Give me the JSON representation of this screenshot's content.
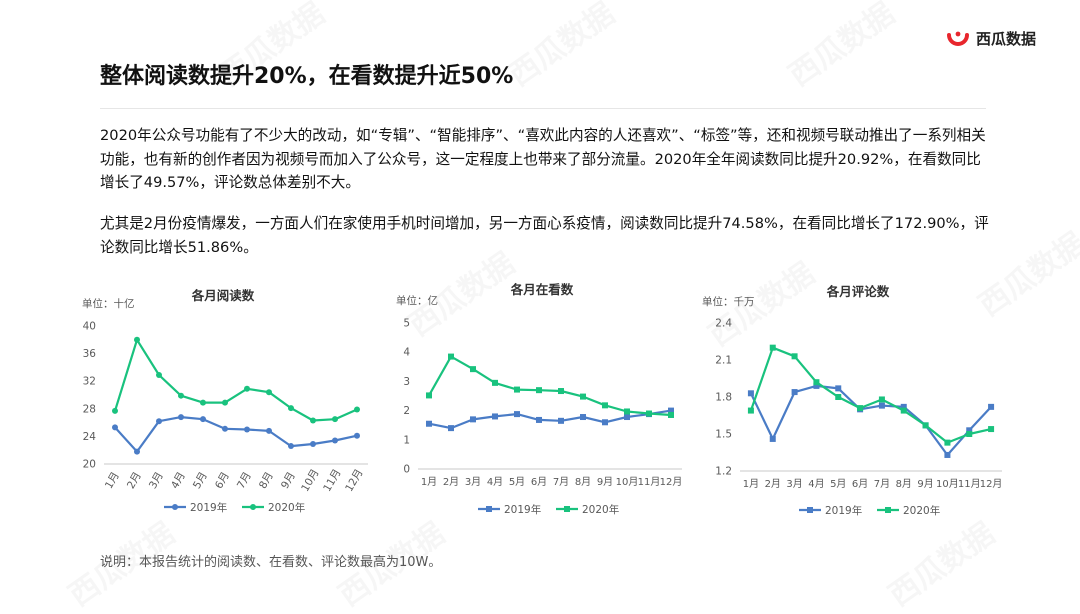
{
  "brand": {
    "name": "西瓜数据",
    "watermark": "西瓜数据"
  },
  "colors": {
    "series_2019": "#4a7cc6",
    "series_2020": "#19c27e",
    "axis": "#c8c8c8",
    "label": "#595959"
  },
  "page": {
    "title": "整体阅读数提升20%，在看数提升近50%",
    "paragraph1": "2020年公众号功能有了不少大的改动，如“专辑”、“智能排序”、“喜欢此内容的人还喜欢”、“标签”等，还和视频号联动推出了一系列相关功能，也有新的创作者因为视频号而加入了公众号，这一定程度上也带来了部分流量。2020年全年阅读数同比提升20.92%，在看数同比增长了49.57%，评论数总体差别不大。",
    "paragraph2": "尤其是2月份疫情爆发，一方面人们在家使用手机时间增加，另一方面心系疫情，阅读数同比提升74.58%，在看同比增长了172.90%，评论数同比增长51.86%。",
    "note": "说明：本报告统计的阅读数、在看数、评论数最高为10W。"
  },
  "chart_data": [
    {
      "type": "line",
      "title": "各月阅读数",
      "unit": "单位：十亿",
      "categories": [
        "1月",
        "2月",
        "3月",
        "4月",
        "5月",
        "6月",
        "7月",
        "8月",
        "9月",
        "10月",
        "11月",
        "12月"
      ],
      "ylim": [
        20,
        40
      ],
      "yticks": [
        20,
        24,
        28,
        32,
        36,
        40
      ],
      "x_label_rotated": true,
      "grid": false,
      "legend": "bottom",
      "series": [
        {
          "name": "2019年",
          "values": [
            25.3,
            21.8,
            26.2,
            26.8,
            26.5,
            25.1,
            25.0,
            24.8,
            22.6,
            22.9,
            23.4,
            24.1
          ]
        },
        {
          "name": "2020年",
          "values": [
            27.7,
            38.0,
            32.9,
            29.9,
            28.9,
            28.9,
            30.9,
            30.4,
            28.1,
            26.3,
            26.5,
            27.9
          ]
        }
      ]
    },
    {
      "type": "line",
      "title": "各月在看数",
      "unit": "单位：亿",
      "categories": [
        "1月",
        "2月",
        "3月",
        "4月",
        "5月",
        "6月",
        "7月",
        "8月",
        "9月",
        "10月",
        "11月",
        "12月"
      ],
      "ylim": [
        0,
        5
      ],
      "yticks": [
        0,
        1,
        2,
        3,
        4,
        5
      ],
      "x_label_rotated": false,
      "grid": false,
      "legend": "bottom",
      "series": [
        {
          "name": "2019年",
          "values": [
            1.55,
            1.4,
            1.7,
            1.8,
            1.88,
            1.68,
            1.65,
            1.78,
            1.6,
            1.78,
            1.88,
            2.0
          ]
        },
        {
          "name": "2020年",
          "values": [
            2.52,
            3.85,
            3.42,
            2.95,
            2.72,
            2.7,
            2.67,
            2.48,
            2.18,
            1.97,
            1.9,
            1.85
          ]
        }
      ]
    },
    {
      "type": "line",
      "title": "各月评论数",
      "unit": "单位：千万",
      "categories": [
        "1月",
        "2月",
        "3月",
        "4月",
        "5月",
        "6月",
        "7月",
        "8月",
        "9月",
        "10月",
        "11月",
        "12月"
      ],
      "ylim": [
        1.2,
        2.4
      ],
      "yticks": [
        1.2,
        1.5,
        1.8,
        2.1,
        2.4
      ],
      "x_label_rotated": false,
      "grid": false,
      "legend": "bottom",
      "series": [
        {
          "name": "2019年",
          "values": [
            1.83,
            1.46,
            1.84,
            1.89,
            1.87,
            1.7,
            1.73,
            1.72,
            1.57,
            1.33,
            1.53,
            1.72
          ]
        },
        {
          "name": "2020年",
          "values": [
            1.69,
            2.2,
            2.13,
            1.92,
            1.8,
            1.71,
            1.78,
            1.69,
            1.57,
            1.43,
            1.5,
            1.54
          ]
        }
      ]
    }
  ]
}
